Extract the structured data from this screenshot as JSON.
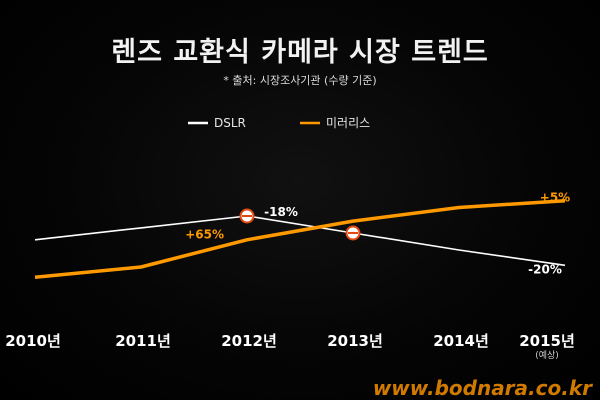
{
  "title": "렌즈 교환식 카메라 시장 트렌드",
  "subtitle": "* 출처: 시장조사기관 (수량 기준)",
  "watermark": "www.bodnara.co.kr",
  "chart_data": {
    "type": "line",
    "title": "렌즈 교환식 카메라 시장 트렌드",
    "categories": [
      "2010년",
      "2011년",
      "2012년",
      "2013년",
      "2014년",
      "2015년"
    ],
    "category_notes": [
      "",
      "",
      "",
      "",
      "",
      "(예상)"
    ],
    "ylim": [
      0,
      100
    ],
    "grid": false,
    "legend": "top-center",
    "series": [
      {
        "name": "DSLR",
        "color": "#ffffff",
        "values": [
          56,
          63,
          70,
          60,
          50,
          41
        ]
      },
      {
        "name": "미러리스",
        "color": "#ff9900",
        "values": [
          34,
          40,
          56,
          67,
          75,
          79
        ]
      }
    ],
    "markers": [
      {
        "series": 0,
        "index": 2
      },
      {
        "series": 0,
        "index": 3
      }
    ],
    "annotations": [
      {
        "text": "-18%",
        "series": 0,
        "index": 2,
        "color": "#ffffff"
      },
      {
        "text": "+65%",
        "series": 1,
        "index": 1.6,
        "color": "#ff9900"
      },
      {
        "text": "+5%",
        "series": 1,
        "index": 5,
        "color": "#ff9900"
      },
      {
        "text": "-20%",
        "series": 0,
        "index": 5,
        "color": "#ffffff"
      }
    ]
  }
}
